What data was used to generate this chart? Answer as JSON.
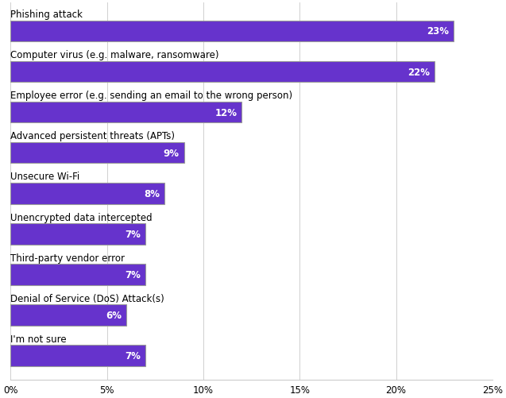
{
  "categories": [
    "Phishing attack",
    "Computer virus (e.g. malware, ransomware)",
    "Employee error (e.g. sending an email to the wrong person)",
    "Advanced persistent threats (APTs)",
    "Unsecure Wi-Fi",
    "Unencrypted data intercepted",
    "Third-party vendor error",
    "Denial of Service (DoS) Attack(s)",
    "I'm not sure"
  ],
  "values": [
    23,
    22,
    12,
    9,
    8,
    7,
    7,
    6,
    7
  ],
  "bar_color": "#6633cc",
  "bar_edgecolor": "#999999",
  "label_color": "#ffffff",
  "category_color": "#000000",
  "background_color": "#ffffff",
  "xlim": [
    0,
    25
  ],
  "xticks": [
    0,
    5,
    10,
    15,
    20,
    25
  ],
  "xticklabels": [
    "0%",
    "5%",
    "10%",
    "15%",
    "20%",
    "25%"
  ],
  "bar_height": 0.52,
  "label_fontsize": 8.5,
  "category_fontsize": 8.5,
  "tick_fontsize": 8.5,
  "figsize": [
    6.37,
    5.02
  ],
  "dpi": 100
}
